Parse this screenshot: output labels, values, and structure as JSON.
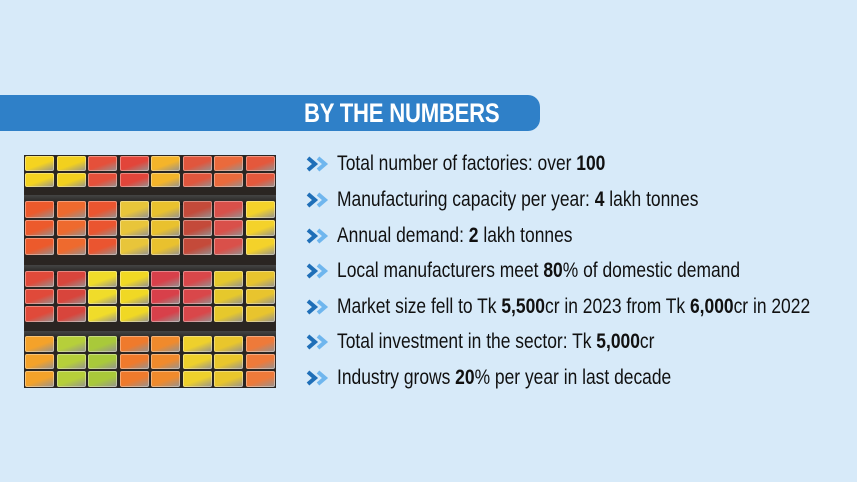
{
  "header": {
    "title": "BY THE NUMBERS"
  },
  "colors": {
    "background": "#d7eaf9",
    "banner": "#2f80c8",
    "chevron_dark": "#1f6fb8",
    "chevron_light": "#6fb6ee"
  },
  "photo": {
    "description_icon": "fruit-cups-shelves-photo"
  },
  "items": [
    {
      "a": "Total number of factories: over ",
      "b": "100",
      "c": ""
    },
    {
      "a": "Manufacturing capacity per year: ",
      "b": "4",
      "c": " lakh tonnes"
    },
    {
      "a": "Annual demand: ",
      "b": "2",
      "c": " lakh tonnes"
    },
    {
      "a": "Local manufacturers meet ",
      "b": "80",
      "c": "% of domestic demand"
    },
    {
      "a": "Market size fell to Tk ",
      "b": "5,500",
      "c": "cr in 2023 from Tk ",
      "d": "6,000",
      "e": "cr in 2022"
    },
    {
      "a": "Total investment in the sector: Tk ",
      "b": "5,000",
      "c": "cr"
    },
    {
      "a": "Industry grows ",
      "b": "20",
      "c": "% per year in last decade"
    }
  ]
}
